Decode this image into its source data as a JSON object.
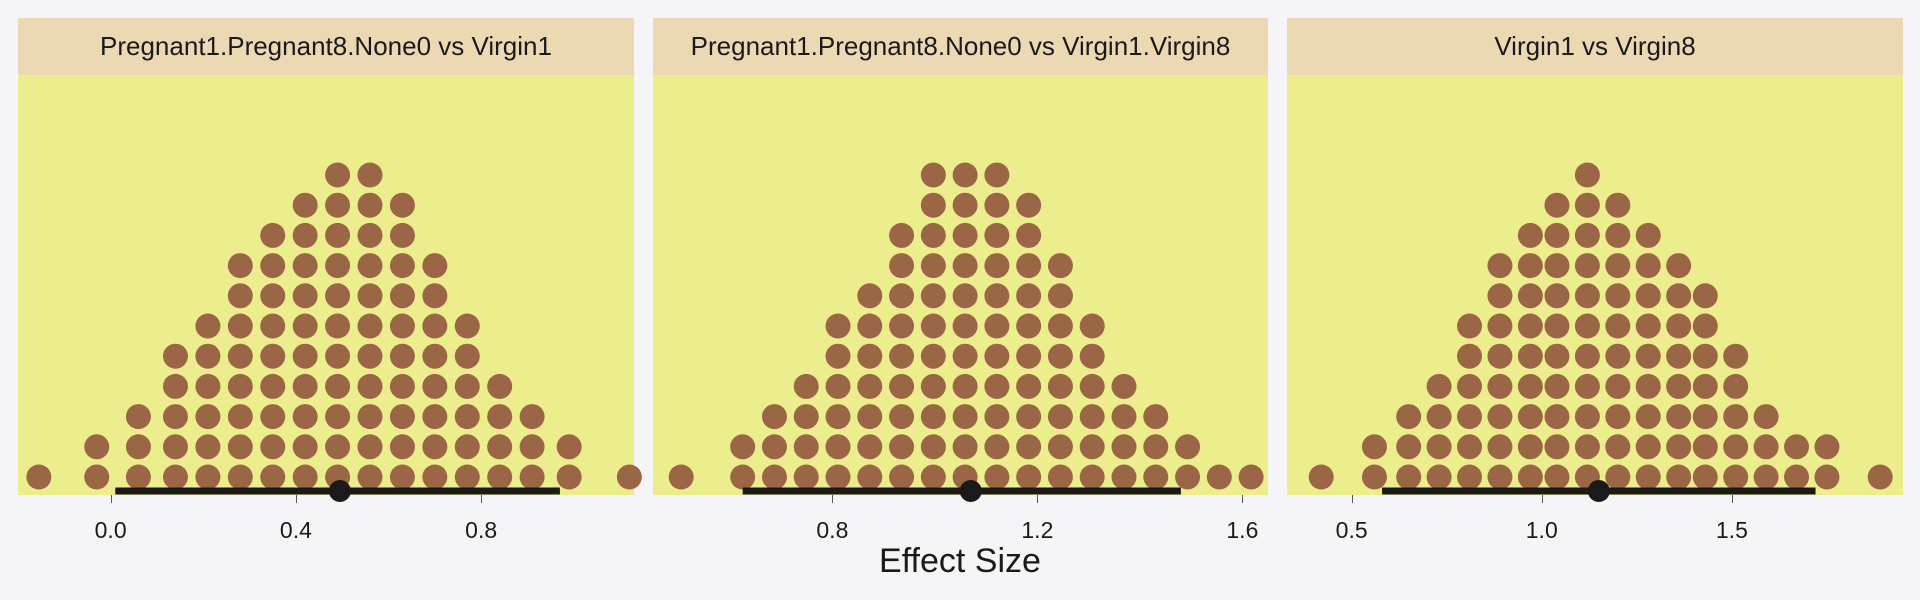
{
  "chart_data": [
    {
      "type": "dotplot",
      "title": "Pregnant1.Pregnant8.None0 vs Virgin1",
      "xlim": [
        -0.2,
        1.13
      ],
      "ticks": [
        0.0,
        0.4,
        0.8
      ],
      "tick_labels": [
        "0.0",
        "0.4",
        "0.8"
      ],
      "columns": [
        {
          "x": -0.155,
          "count": 1
        },
        {
          "x": -0.03,
          "count": 2
        },
        {
          "x": 0.06,
          "count": 3
        },
        {
          "x": 0.14,
          "count": 5
        },
        {
          "x": 0.21,
          "count": 6
        },
        {
          "x": 0.28,
          "count": 8
        },
        {
          "x": 0.35,
          "count": 9
        },
        {
          "x": 0.42,
          "count": 10
        },
        {
          "x": 0.49,
          "count": 11
        },
        {
          "x": 0.56,
          "count": 11
        },
        {
          "x": 0.63,
          "count": 10
        },
        {
          "x": 0.7,
          "count": 8
        },
        {
          "x": 0.77,
          "count": 6
        },
        {
          "x": 0.84,
          "count": 4
        },
        {
          "x": 0.91,
          "count": 3
        },
        {
          "x": 0.99,
          "count": 2
        },
        {
          "x": 1.12,
          "count": 1
        }
      ],
      "point_estimate": 0.495,
      "interval": [
        0.01,
        0.97
      ]
    },
    {
      "type": "dotplot",
      "title": "Pregnant1.Pregnant8.None0 vs Virgin1.Virgin8",
      "xlim": [
        0.45,
        1.65
      ],
      "ticks": [
        0.8,
        1.2,
        1.6
      ],
      "tick_labels": [
        "0.8",
        "1.2",
        "1.6"
      ],
      "columns": [
        {
          "x": 0.505,
          "count": 1
        },
        {
          "x": 0.625,
          "count": 2
        },
        {
          "x": 0.687,
          "count": 3
        },
        {
          "x": 0.749,
          "count": 4
        },
        {
          "x": 0.811,
          "count": 6
        },
        {
          "x": 0.873,
          "count": 7
        },
        {
          "x": 0.935,
          "count": 9
        },
        {
          "x": 0.997,
          "count": 11
        },
        {
          "x": 1.059,
          "count": 11
        },
        {
          "x": 1.121,
          "count": 11
        },
        {
          "x": 1.183,
          "count": 10
        },
        {
          "x": 1.245,
          "count": 8
        },
        {
          "x": 1.307,
          "count": 6
        },
        {
          "x": 1.369,
          "count": 4
        },
        {
          "x": 1.431,
          "count": 3
        },
        {
          "x": 1.493,
          "count": 2
        },
        {
          "x": 1.555,
          "count": 1
        },
        {
          "x": 1.617,
          "count": 1
        }
      ],
      "point_estimate": 1.07,
      "interval": [
        0.625,
        1.48
      ]
    },
    {
      "type": "dotplot",
      "title": "Virgin1 vs Virgin8",
      "xlim": [
        0.33,
        1.95
      ],
      "ticks": [
        0.5,
        1.0,
        1.5
      ],
      "tick_labels": [
        "0.5",
        "1.0",
        "1.5"
      ],
      "columns": [
        {
          "x": 0.42,
          "count": 1
        },
        {
          "x": 0.56,
          "count": 2
        },
        {
          "x": 0.65,
          "count": 3
        },
        {
          "x": 0.73,
          "count": 4
        },
        {
          "x": 0.81,
          "count": 6
        },
        {
          "x": 0.89,
          "count": 8
        },
        {
          "x": 0.97,
          "count": 9
        },
        {
          "x": 1.04,
          "count": 10
        },
        {
          "x": 1.12,
          "count": 11
        },
        {
          "x": 1.2,
          "count": 10
        },
        {
          "x": 1.28,
          "count": 9
        },
        {
          "x": 1.36,
          "count": 8
        },
        {
          "x": 1.43,
          "count": 7
        },
        {
          "x": 1.51,
          "count": 5
        },
        {
          "x": 1.59,
          "count": 3
        },
        {
          "x": 1.67,
          "count": 2
        },
        {
          "x": 1.75,
          "count": 2
        },
        {
          "x": 1.89,
          "count": 1
        }
      ],
      "point_estimate": 1.15,
      "interval": [
        0.58,
        1.72
      ]
    }
  ],
  "xlabel": "Effect Size",
  "colors": {
    "dot": "#9b6646",
    "panel_bg": "#eced8d",
    "strip_bg": "#ecd9b4",
    "interval": "#1a1a1a",
    "page_bg": "#f5f5f7"
  }
}
